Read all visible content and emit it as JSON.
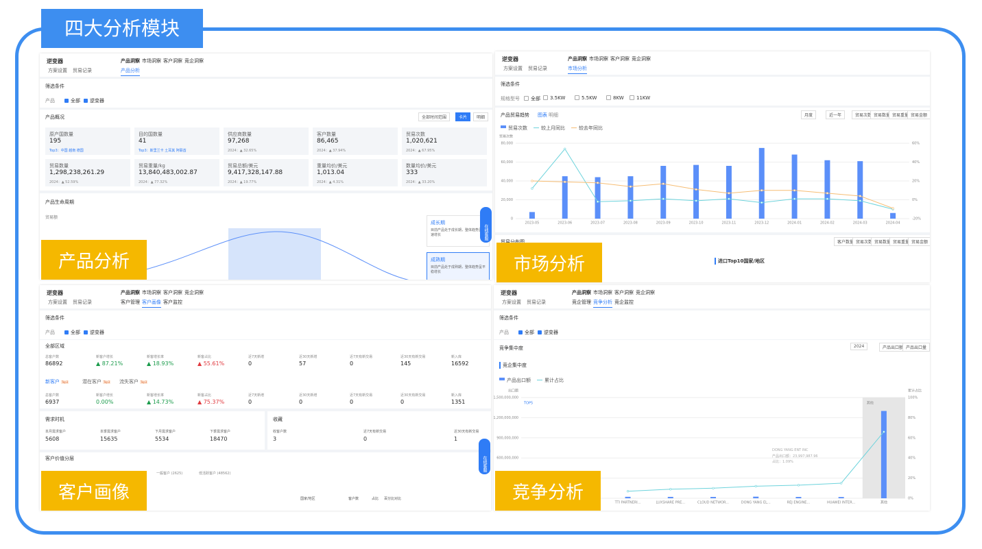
{
  "title": "四大分析模块",
  "chat": "在线客服",
  "product": {
    "label": "产品分析",
    "selector": "逆变器",
    "tabs": [
      "产品洞察",
      "市场洞察",
      "客户洞察",
      "竞企洞察"
    ],
    "links": [
      "方案设置",
      "贸易记录"
    ],
    "subtabs": [
      "产品分析"
    ],
    "active_subtab": 0,
    "filter_title": "筛选条件",
    "filter_label": "产品",
    "options": [
      "全部",
      "逆变器"
    ],
    "overview_title": "产品概况",
    "range": "全部时间范围",
    "buttons": [
      "卡片",
      "明细"
    ],
    "cards": [
      {
        "name": "原产国数量",
        "value": "195",
        "note": "Top3：中国 越南 德国"
      },
      {
        "name": "目的国数量",
        "value": "41",
        "note": "Top3：斯里兰卡 土耳其 阿联酋"
      },
      {
        "name": "供应商数量",
        "value": "97,268",
        "note": "2024：▲ 32.65%"
      },
      {
        "name": "客户数量",
        "value": "86,465",
        "note": "2024：▲ 37.94%"
      },
      {
        "name": "贸易次数",
        "value": "1,020,621",
        "note": "2024：▲ 67.95%"
      },
      {
        "name": "贸易数量",
        "value": "1,298,238,261.29",
        "note": "2024：▲ 52.59%"
      },
      {
        "name": "贸易重量/kg",
        "value": "13,840,483,002.87",
        "note": "2024：▲ 77.32%"
      },
      {
        "name": "贸易总额/美元",
        "value": "9,417,328,147.88",
        "note": "2024：▲ 19.77%"
      },
      {
        "name": "重量均价/美元",
        "value": "1,013.04",
        "note": "2024：▲ 4.31%"
      },
      {
        "name": "数量均价/美元",
        "value": "333",
        "note": "2024：▲ 33.20%"
      }
    ],
    "lifecycle_title": "产品生命周期",
    "lifecycle_axis": "贸易额",
    "stages": [
      {
        "name": "成长期",
        "text": "目前产品处于成长期，整体趋势呈快速增长"
      },
      {
        "name": "成熟期",
        "text": "目前产品处于成熟期，整体趋势呈平稳增长"
      }
    ]
  },
  "market": {
    "label": "市场分析",
    "selector": "逆变器",
    "tabs": [
      "产品洞察",
      "市场洞察",
      "客户洞察",
      "竞企洞察"
    ],
    "links": [
      "方案设置",
      "贸易记录"
    ],
    "subtabs": [
      "市场分析"
    ],
    "active_subtab": 0,
    "filter_title": "筛选条件",
    "filter_label": "规格型号",
    "options": [
      "全部",
      "3.5KW",
      "5.5KW",
      "8KW",
      "11KW"
    ],
    "trend_title": "产品贸易趋势",
    "views": [
      "图表",
      "明细"
    ],
    "controls": [
      "月度",
      "近一年"
    ],
    "metrics": [
      "贸易次数",
      "贸易数量",
      "贸易重量",
      "贸易金额"
    ],
    "chart": {
      "type": "bar",
      "y_label": "贸易次数",
      "categories": [
        "2023-05",
        "2023-06",
        "2023-07",
        "2023-08",
        "2023-09",
        "2023-10",
        "2023-11",
        "2023-12",
        "2024-01",
        "2024-02",
        "2024-03",
        "2024-04"
      ],
      "series": [
        {
          "name": "贸易次数",
          "color": "#5b8ff9",
          "values": [
            7000,
            45000,
            44000,
            45000,
            56000,
            57000,
            56000,
            75000,
            68000,
            62000,
            61000,
            6000
          ]
        },
        {
          "name": "较上月同比",
          "color": "#6dd3dc",
          "axis": "y2",
          "values": [
            12,
            54,
            -2,
            -1,
            1,
            -1,
            1,
            -3,
            1,
            1,
            -1,
            -10
          ]
        },
        {
          "name": "较去年同比",
          "color": "#f6bd74",
          "axis": "y2",
          "values": [
            20,
            19,
            18,
            14,
            17,
            11,
            7,
            10,
            10,
            7,
            4,
            -9
          ]
        }
      ],
      "ylim": [
        0,
        80000
      ],
      "yticks": [
        0,
        {
          "value": 20000,
          "label": "20,000"
        },
        {
          "value": 40000,
          "label": "40,000"
        },
        {
          "value": 60000,
          "label": "60,000"
        },
        {
          "value": 80000,
          "label": "80,000"
        }
      ],
      "y2lim": [
        -20,
        60
      ],
      "y2ticks": [
        {
          "value": -20,
          "label": "-20%"
        },
        {
          "value": 0,
          "label": "0%"
        },
        {
          "value": 20,
          "label": "20%"
        },
        {
          "value": 40,
          "label": "40%"
        },
        {
          "value": 60,
          "label": "60%"
        }
      ]
    },
    "dist_title": "贸易分布图",
    "dist_metrics": [
      "客户数量",
      "贸易次数",
      "贸易数量",
      "贸易重量",
      "贸易金额"
    ],
    "map_title": "进口Top10国家/地区"
  },
  "customer": {
    "label": "客户画像",
    "selector": "逆变器",
    "tabs": [
      "产品洞察",
      "市场洞察",
      "客户洞察",
      "竞企洞察"
    ],
    "links": [
      "方案设置",
      "贸易记录"
    ],
    "subtabs": [
      "客户管理",
      "客户画像",
      "客户监控"
    ],
    "active_subtab": 1,
    "filter_title": "筛选条件",
    "filter_label": "产品",
    "options": [
      "全部",
      "逆变器"
    ],
    "region_title": "全部区域",
    "metrics": [
      {
        "name": "总客户数",
        "value": "86892"
      },
      {
        "name": "新客户增长",
        "value": "▲ 87.21%",
        "color": "#1a9b4b"
      },
      {
        "name": "新客增长率",
        "value": "▲ 18.93%",
        "color": "#1a9b4b"
      },
      {
        "name": "新客占比",
        "value": "▲ 55.61%",
        "color": "#e0393e"
      },
      {
        "name": "近7天新增",
        "value": "0"
      },
      {
        "name": "近30天新增",
        "value": "57"
      },
      {
        "name": "近7天有新交易",
        "value": "0"
      },
      {
        "name": "近30天有新交易",
        "value": "145"
      },
      {
        "name": "新入库",
        "value": "16592"
      }
    ],
    "groups": [
      {
        "name": "新客户",
        "badge": "Top3"
      },
      {
        "name": "潜在客户",
        "badge": "Top3"
      },
      {
        "name": "流失客户",
        "badge": "Top3"
      }
    ],
    "metrics2": [
      "6937",
      "0.00%",
      "▲ 14.73%",
      "▲ 75.37%",
      "0",
      "0",
      "0",
      "0",
      "1351"
    ],
    "demand_title": "需求时机",
    "demand": [
      {
        "name": "本月需求客户",
        "value": "5608"
      },
      {
        "name": "本季需求客户",
        "value": "15635"
      },
      {
        "name": "下月需求客户",
        "value": "5534"
      },
      {
        "name": "下季需求客户",
        "value": "18470"
      }
    ],
    "fav_title": "收藏",
    "fav": [
      {
        "name": "收客户数",
        "value": "3"
      },
      {
        "name": "近7天有新交易",
        "value": "0"
      },
      {
        "name": "近30天有新交易",
        "value": "1"
      }
    ],
    "value_title": "客户价值分层",
    "value_legend": [
      "一般客户 (2625)",
      "低活跃客户 (48562)"
    ],
    "table_headers": [
      "国家/地区",
      "客户数",
      "占比",
      "百分比对比"
    ]
  },
  "competition": {
    "label": "竞争分析",
    "selector": "逆变器",
    "tabs": [
      "产品洞察",
      "市场洞察",
      "客户洞察",
      "竞企洞察"
    ],
    "links": [
      "方案设置",
      "贸易记录"
    ],
    "subtabs": [
      "竞企管理",
      "竞争分析",
      "竞企监控"
    ],
    "active_subtab": 1,
    "filter_title": "筛选条件",
    "filter_label": "产品",
    "options": [
      "全部",
      "逆变器"
    ],
    "section_title": "竞争集中度",
    "year": "2024",
    "buttons": [
      "产品出口额",
      "产品出口量"
    ],
    "sub_title": "竞企集中度",
    "chart": {
      "type": "bar",
      "y_label": "出口额",
      "y2_label": "累计占比",
      "top_label": "TOP5",
      "other_label": "其他",
      "categories": [
        "TTI PARTNERI...",
        "LUXSHARE PRE...",
        "CLOUD NETWOR...",
        "DONG YANG EL...",
        "REJ ENGINE...",
        "HUAWEI INTER...",
        "其他"
      ],
      "series": [
        {
          "name": "产品出口额",
          "color": "#5b8ff9",
          "values": [
            22000000,
            21000000,
            20000000,
            24000000,
            20000000,
            19000000,
            1300000000
          ]
        },
        {
          "name": "累计占比",
          "color": "#6dd3dc",
          "axis": "y2",
          "values": [
            7,
            9,
            10,
            12,
            13,
            15,
            66
          ]
        }
      ],
      "ylim": [
        0,
        1500000000
      ],
      "yticks": [
        0,
        {
          "value": 300000000,
          "label": "300,000,000"
        },
        {
          "value": 600000000,
          "label": "600,000,000"
        },
        {
          "value": 900000000,
          "label": "900,000,000"
        },
        {
          "value": 1200000000,
          "label": "1,200,000,000"
        },
        {
          "value": 1500000000,
          "label": "1,500,000,000"
        }
      ],
      "y2lim": [
        0,
        100
      ],
      "y2ticks": [
        {
          "value": 0,
          "label": "0%"
        },
        {
          "value": 20,
          "label": "20%"
        },
        {
          "value": 40,
          "label": "40%"
        },
        {
          "value": 60,
          "label": "60%"
        },
        {
          "value": 80,
          "label": "80%"
        },
        {
          "value": 100,
          "label": "100%"
        }
      ],
      "tooltip": [
        "DONG YANG ENT INC",
        "产品出口额：23,997,987.96",
        "占比：1.09%"
      ]
    }
  }
}
